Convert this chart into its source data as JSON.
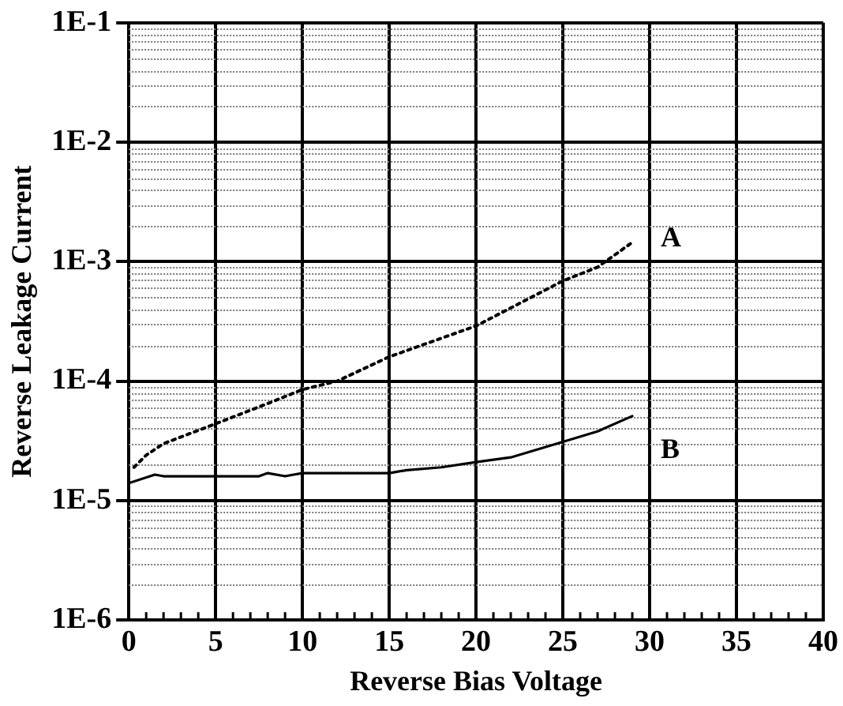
{
  "chart_data": {
    "type": "line",
    "xlabel": "Reverse Bias Voltage",
    "ylabel": "Reverse Leakage Current",
    "log": "y",
    "grid": true,
    "legend": false,
    "marker": "none",
    "xlim": [
      0,
      40
    ],
    "xticks": [
      0,
      5,
      10,
      15,
      20,
      25,
      30,
      35,
      40
    ],
    "ylim": [
      1e-06,
      0.1
    ],
    "yticks": [
      {
        "value": 1e-06,
        "label": "1E-6"
      },
      {
        "value": 1e-05,
        "label": "1E-5"
      },
      {
        "value": 0.0001,
        "label": "1E-4"
      },
      {
        "value": 0.001,
        "label": "1E-3"
      },
      {
        "value": 0.01,
        "label": "1E-2"
      },
      {
        "value": 0.1,
        "label": "1E-1"
      }
    ],
    "series": [
      {
        "name": "A",
        "color": "#000000",
        "line_style": "dotted",
        "x": [
          0.3,
          1,
          2,
          5,
          8,
          10,
          12,
          15,
          20,
          25,
          27,
          29
        ],
        "values": [
          1.9e-05,
          2.4e-05,
          3e-05,
          4.4e-05,
          6.5e-05,
          8.5e-05,
          0.0001,
          0.00016,
          0.00029,
          0.00069,
          0.0009,
          0.00145
        ]
      },
      {
        "name": "B",
        "color": "#000000",
        "line_style": "solid",
        "x": [
          0,
          1.5,
          2,
          7.5,
          8,
          9,
          9.5,
          10,
          15,
          16,
          18,
          20,
          22,
          25,
          27,
          29
        ],
        "values": [
          1.4e-05,
          1.65e-05,
          1.6e-05,
          1.6e-05,
          1.7e-05,
          1.6e-05,
          1.65e-05,
          1.7e-05,
          1.7e-05,
          1.8e-05,
          1.9e-05,
          2.1e-05,
          2.3e-05,
          3.1e-05,
          3.8e-05,
          5.1e-05
        ]
      }
    ]
  }
}
